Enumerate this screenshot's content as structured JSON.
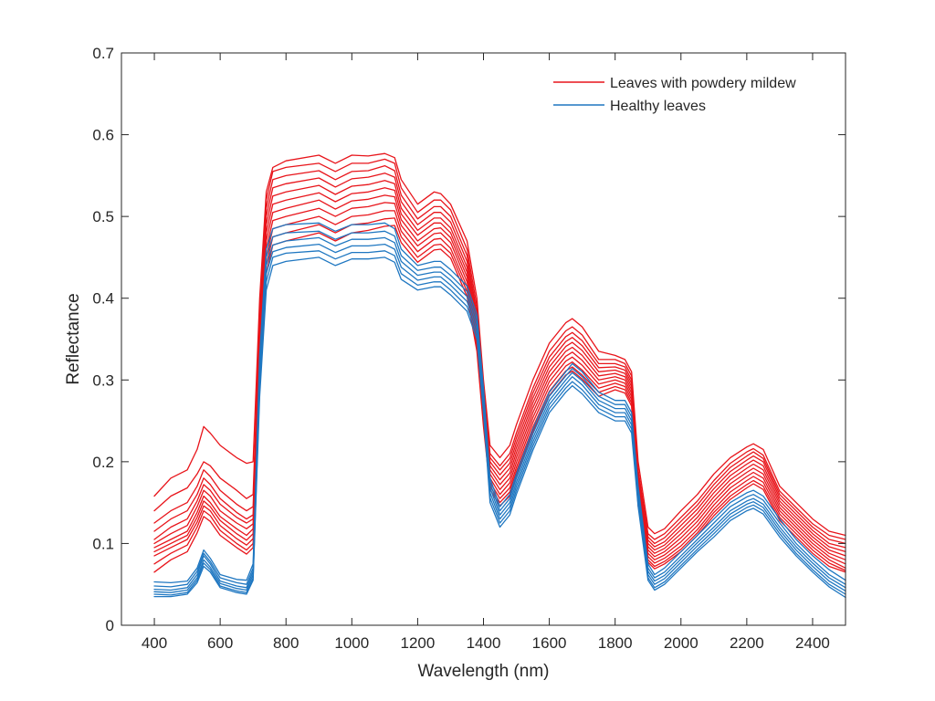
{
  "chart_data": {
    "type": "line",
    "xlabel": "Wavelength (nm)",
    "ylabel": "Reflectance",
    "xlim": [
      300,
      2500
    ],
    "ylim": [
      0,
      0.7
    ],
    "xticks": [
      400,
      600,
      800,
      1000,
      1200,
      1400,
      1600,
      1800,
      2000,
      2200,
      2400
    ],
    "xtick_labels": [
      "400",
      "600",
      "800",
      "1000",
      "1200",
      "1400",
      "1600",
      "1800",
      "2000",
      "2200",
      "2400"
    ],
    "yticks": [
      0,
      0.1,
      0.2,
      0.3,
      0.4,
      0.5,
      0.6,
      0.7
    ],
    "ytick_labels": [
      "0",
      "0.1",
      "0.2",
      "0.3",
      "0.4",
      "0.5",
      "0.6",
      "0.7"
    ],
    "grid": false,
    "box": true,
    "legend_position": "top-right",
    "legend": [
      {
        "label": "Leaves with powdery mildew",
        "color": "#e8141a"
      },
      {
        "label": "Healthy leaves",
        "color": "#1f77c1"
      }
    ],
    "wavelengths": [
      400,
      450,
      500,
      530,
      550,
      570,
      600,
      650,
      680,
      700,
      720,
      740,
      760,
      800,
      900,
      950,
      1000,
      1050,
      1100,
      1130,
      1150,
      1200,
      1250,
      1270,
      1300,
      1350,
      1380,
      1400,
      1420,
      1450,
      1480,
      1500,
      1550,
      1600,
      1650,
      1670,
      1700,
      1750,
      1800,
      1830,
      1850,
      1870,
      1900,
      1920,
      1950,
      2000,
      2050,
      2100,
      2150,
      2200,
      2220,
      2250,
      2300,
      2350,
      2400,
      2450,
      2500
    ],
    "series": [
      {
        "group": "mildew",
        "color": "#e8141a",
        "values": [
          0.158,
          0.18,
          0.19,
          0.215,
          0.243,
          0.235,
          0.22,
          0.205,
          0.198,
          0.2,
          0.4,
          0.53,
          0.56,
          0.568,
          0.575,
          0.565,
          0.575,
          0.574,
          0.577,
          0.572,
          0.545,
          0.515,
          0.53,
          0.528,
          0.515,
          0.47,
          0.4,
          0.3,
          0.22,
          0.205,
          0.22,
          0.245,
          0.3,
          0.345,
          0.37,
          0.375,
          0.365,
          0.335,
          0.33,
          0.325,
          0.31,
          0.2,
          0.12,
          0.112,
          0.118,
          0.14,
          0.16,
          0.185,
          0.205,
          0.218,
          0.222,
          0.215,
          0.17,
          0.15,
          0.13,
          0.115,
          0.11
        ]
      },
      {
        "group": "mildew",
        "color": "#e8141a",
        "values": [
          0.14,
          0.158,
          0.168,
          0.185,
          0.2,
          0.195,
          0.18,
          0.165,
          0.155,
          0.16,
          0.38,
          0.52,
          0.555,
          0.56,
          0.565,
          0.555,
          0.565,
          0.565,
          0.57,
          0.565,
          0.535,
          0.505,
          0.52,
          0.52,
          0.508,
          0.46,
          0.39,
          0.29,
          0.21,
          0.195,
          0.21,
          0.235,
          0.29,
          0.335,
          0.36,
          0.365,
          0.355,
          0.325,
          0.325,
          0.32,
          0.305,
          0.19,
          0.112,
          0.105,
          0.112,
          0.132,
          0.152,
          0.177,
          0.198,
          0.212,
          0.216,
          0.208,
          0.164,
          0.144,
          0.124,
          0.11,
          0.105
        ]
      },
      {
        "group": "mildew",
        "color": "#e8141a",
        "values": [
          0.125,
          0.14,
          0.15,
          0.17,
          0.19,
          0.182,
          0.165,
          0.148,
          0.14,
          0.145,
          0.37,
          0.51,
          0.545,
          0.55,
          0.556,
          0.545,
          0.555,
          0.556,
          0.562,
          0.556,
          0.526,
          0.497,
          0.512,
          0.512,
          0.5,
          0.452,
          0.382,
          0.283,
          0.205,
          0.19,
          0.204,
          0.229,
          0.284,
          0.328,
          0.353,
          0.358,
          0.348,
          0.32,
          0.32,
          0.316,
          0.3,
          0.185,
          0.108,
          0.1,
          0.107,
          0.127,
          0.147,
          0.172,
          0.193,
          0.207,
          0.212,
          0.204,
          0.16,
          0.14,
          0.12,
          0.105,
          0.1
        ]
      },
      {
        "group": "mildew",
        "color": "#e8141a",
        "values": [
          0.115,
          0.13,
          0.14,
          0.16,
          0.18,
          0.172,
          0.155,
          0.138,
          0.13,
          0.135,
          0.36,
          0.5,
          0.535,
          0.54,
          0.547,
          0.536,
          0.546,
          0.548,
          0.553,
          0.548,
          0.518,
          0.49,
          0.505,
          0.505,
          0.493,
          0.445,
          0.376,
          0.277,
          0.2,
          0.184,
          0.198,
          0.223,
          0.278,
          0.322,
          0.347,
          0.352,
          0.342,
          0.315,
          0.316,
          0.312,
          0.296,
          0.18,
          0.104,
          0.096,
          0.102,
          0.122,
          0.142,
          0.167,
          0.188,
          0.202,
          0.207,
          0.2,
          0.156,
          0.136,
          0.116,
          0.1,
          0.095
        ]
      },
      {
        "group": "mildew",
        "color": "#e8141a",
        "values": [
          0.105,
          0.12,
          0.13,
          0.152,
          0.172,
          0.165,
          0.148,
          0.132,
          0.125,
          0.13,
          0.35,
          0.49,
          0.525,
          0.53,
          0.538,
          0.527,
          0.537,
          0.539,
          0.544,
          0.54,
          0.51,
          0.483,
          0.498,
          0.498,
          0.486,
          0.438,
          0.37,
          0.272,
          0.195,
          0.178,
          0.192,
          0.217,
          0.272,
          0.316,
          0.341,
          0.346,
          0.336,
          0.31,
          0.312,
          0.308,
          0.292,
          0.175,
          0.1,
          0.092,
          0.098,
          0.117,
          0.137,
          0.162,
          0.183,
          0.197,
          0.202,
          0.195,
          0.152,
          0.132,
          0.112,
          0.096,
          0.09
        ]
      },
      {
        "group": "mildew",
        "color": "#e8141a",
        "values": [
          0.1,
          0.112,
          0.122,
          0.145,
          0.165,
          0.158,
          0.14,
          0.125,
          0.118,
          0.124,
          0.34,
          0.48,
          0.515,
          0.52,
          0.529,
          0.518,
          0.528,
          0.53,
          0.535,
          0.532,
          0.503,
          0.477,
          0.492,
          0.492,
          0.48,
          0.432,
          0.364,
          0.267,
          0.19,
          0.172,
          0.186,
          0.211,
          0.266,
          0.31,
          0.335,
          0.34,
          0.33,
          0.305,
          0.308,
          0.304,
          0.288,
          0.17,
          0.096,
          0.088,
          0.094,
          0.112,
          0.132,
          0.157,
          0.178,
          0.192,
          0.197,
          0.19,
          0.148,
          0.128,
          0.108,
          0.092,
          0.085
        ]
      },
      {
        "group": "mildew",
        "color": "#e8141a",
        "values": [
          0.095,
          0.105,
          0.115,
          0.138,
          0.158,
          0.15,
          0.133,
          0.118,
          0.11,
          0.118,
          0.33,
          0.47,
          0.505,
          0.51,
          0.52,
          0.509,
          0.519,
          0.521,
          0.526,
          0.524,
          0.496,
          0.47,
          0.485,
          0.486,
          0.474,
          0.426,
          0.358,
          0.262,
          0.185,
          0.166,
          0.18,
          0.205,
          0.26,
          0.304,
          0.329,
          0.334,
          0.324,
          0.3,
          0.304,
          0.3,
          0.284,
          0.165,
          0.092,
          0.084,
          0.09,
          0.107,
          0.127,
          0.152,
          0.173,
          0.187,
          0.192,
          0.185,
          0.144,
          0.124,
          0.104,
          0.088,
          0.08
        ]
      },
      {
        "group": "mildew",
        "color": "#e8141a",
        "values": [
          0.09,
          0.1,
          0.11,
          0.132,
          0.152,
          0.145,
          0.128,
          0.112,
          0.104,
          0.112,
          0.32,
          0.46,
          0.495,
          0.5,
          0.51,
          0.5,
          0.51,
          0.512,
          0.517,
          0.516,
          0.489,
          0.464,
          0.479,
          0.48,
          0.468,
          0.42,
          0.352,
          0.257,
          0.18,
          0.16,
          0.174,
          0.199,
          0.254,
          0.298,
          0.323,
          0.328,
          0.318,
          0.295,
          0.3,
          0.296,
          0.28,
          0.16,
          0.088,
          0.08,
          0.086,
          0.102,
          0.122,
          0.147,
          0.168,
          0.182,
          0.187,
          0.18,
          0.14,
          0.12,
          0.1,
          0.084,
          0.075
        ]
      },
      {
        "group": "mildew",
        "color": "#e8141a",
        "values": [
          0.085,
          0.095,
          0.105,
          0.126,
          0.146,
          0.14,
          0.122,
          0.106,
          0.098,
          0.106,
          0.31,
          0.45,
          0.485,
          0.49,
          0.5,
          0.49,
          0.5,
          0.502,
          0.507,
          0.507,
          0.482,
          0.457,
          0.472,
          0.473,
          0.461,
          0.414,
          0.346,
          0.252,
          0.175,
          0.155,
          0.168,
          0.193,
          0.248,
          0.292,
          0.317,
          0.322,
          0.312,
          0.29,
          0.296,
          0.292,
          0.276,
          0.155,
          0.084,
          0.076,
          0.082,
          0.097,
          0.117,
          0.142,
          0.163,
          0.177,
          0.182,
          0.175,
          0.136,
          0.116,
          0.096,
          0.08,
          0.07
        ]
      },
      {
        "group": "mildew",
        "color": "#e8141a",
        "values": [
          0.075,
          0.088,
          0.098,
          0.12,
          0.14,
          0.134,
          0.116,
          0.1,
          0.092,
          0.1,
          0.3,
          0.44,
          0.475,
          0.48,
          0.49,
          0.48,
          0.49,
          0.492,
          0.497,
          0.498,
          0.475,
          0.45,
          0.465,
          0.466,
          0.455,
          0.408,
          0.34,
          0.247,
          0.17,
          0.15,
          0.163,
          0.188,
          0.242,
          0.286,
          0.311,
          0.316,
          0.306,
          0.285,
          0.292,
          0.288,
          0.272,
          0.15,
          0.08,
          0.072,
          0.078,
          0.093,
          0.113,
          0.138,
          0.158,
          0.172,
          0.177,
          0.17,
          0.132,
          0.112,
          0.092,
          0.076,
          0.067
        ]
      },
      {
        "group": "mildew",
        "color": "#e8141a",
        "values": [
          0.065,
          0.08,
          0.09,
          0.113,
          0.133,
          0.127,
          0.11,
          0.095,
          0.087,
          0.095,
          0.29,
          0.43,
          0.465,
          0.47,
          0.48,
          0.47,
          0.48,
          0.483,
          0.488,
          0.489,
          0.468,
          0.444,
          0.459,
          0.46,
          0.449,
          0.402,
          0.335,
          0.243,
          0.166,
          0.146,
          0.158,
          0.183,
          0.237,
          0.281,
          0.306,
          0.311,
          0.301,
          0.28,
          0.288,
          0.284,
          0.268,
          0.146,
          0.077,
          0.069,
          0.075,
          0.09,
          0.11,
          0.134,
          0.154,
          0.168,
          0.173,
          0.166,
          0.128,
          0.108,
          0.088,
          0.072,
          0.065
        ]
      },
      {
        "group": "healthy",
        "color": "#1f77c1",
        "values": [
          0.053,
          0.052,
          0.054,
          0.07,
          0.092,
          0.082,
          0.062,
          0.056,
          0.055,
          0.075,
          0.33,
          0.46,
          0.485,
          0.49,
          0.492,
          0.482,
          0.49,
          0.49,
          0.492,
          0.485,
          0.46,
          0.44,
          0.445,
          0.445,
          0.435,
          0.415,
          0.38,
          0.29,
          0.18,
          0.145,
          0.16,
          0.185,
          0.24,
          0.285,
          0.31,
          0.32,
          0.31,
          0.285,
          0.275,
          0.275,
          0.26,
          0.17,
          0.075,
          0.062,
          0.07,
          0.09,
          0.11,
          0.13,
          0.15,
          0.162,
          0.165,
          0.158,
          0.13,
          0.105,
          0.085,
          0.068,
          0.055
        ]
      },
      {
        "group": "healthy",
        "color": "#1f77c1",
        "values": [
          0.048,
          0.047,
          0.05,
          0.066,
          0.088,
          0.078,
          0.058,
          0.052,
          0.05,
          0.07,
          0.32,
          0.45,
          0.475,
          0.48,
          0.482,
          0.472,
          0.48,
          0.48,
          0.482,
          0.476,
          0.452,
          0.434,
          0.438,
          0.438,
          0.428,
          0.408,
          0.374,
          0.284,
          0.174,
          0.14,
          0.155,
          0.18,
          0.234,
          0.28,
          0.305,
          0.314,
          0.304,
          0.28,
          0.27,
          0.27,
          0.255,
          0.165,
          0.07,
          0.058,
          0.065,
          0.085,
          0.105,
          0.125,
          0.145,
          0.157,
          0.16,
          0.153,
          0.125,
          0.1,
          0.08,
          0.062,
          0.05
        ]
      },
      {
        "group": "healthy",
        "color": "#1f77c1",
        "values": [
          0.044,
          0.043,
          0.046,
          0.062,
          0.085,
          0.075,
          0.054,
          0.048,
          0.046,
          0.066,
          0.31,
          0.44,
          0.465,
          0.47,
          0.474,
          0.464,
          0.472,
          0.472,
          0.474,
          0.468,
          0.445,
          0.428,
          0.432,
          0.432,
          0.422,
          0.402,
          0.368,
          0.278,
          0.168,
          0.135,
          0.15,
          0.175,
          0.229,
          0.275,
          0.3,
          0.309,
          0.299,
          0.275,
          0.265,
          0.265,
          0.25,
          0.16,
          0.066,
          0.054,
          0.061,
          0.081,
          0.101,
          0.12,
          0.14,
          0.152,
          0.155,
          0.148,
          0.12,
          0.096,
          0.076,
          0.058,
          0.046
        ]
      },
      {
        "group": "healthy",
        "color": "#1f77c1",
        "values": [
          0.041,
          0.04,
          0.043,
          0.058,
          0.08,
          0.071,
          0.051,
          0.045,
          0.043,
          0.062,
          0.3,
          0.43,
          0.457,
          0.462,
          0.466,
          0.456,
          0.464,
          0.464,
          0.466,
          0.46,
          0.438,
          0.422,
          0.426,
          0.426,
          0.416,
          0.396,
          0.362,
          0.272,
          0.162,
          0.13,
          0.145,
          0.17,
          0.224,
          0.27,
          0.295,
          0.304,
          0.294,
          0.27,
          0.26,
          0.26,
          0.245,
          0.155,
          0.062,
          0.05,
          0.057,
          0.077,
          0.097,
          0.116,
          0.136,
          0.148,
          0.151,
          0.144,
          0.116,
          0.092,
          0.072,
          0.054,
          0.042
        ]
      },
      {
        "group": "healthy",
        "color": "#1f77c1",
        "values": [
          0.038,
          0.037,
          0.04,
          0.055,
          0.076,
          0.068,
          0.048,
          0.042,
          0.04,
          0.058,
          0.29,
          0.42,
          0.45,
          0.455,
          0.458,
          0.448,
          0.456,
          0.456,
          0.458,
          0.452,
          0.43,
          0.416,
          0.42,
          0.42,
          0.41,
          0.39,
          0.356,
          0.266,
          0.156,
          0.125,
          0.14,
          0.165,
          0.219,
          0.265,
          0.29,
          0.298,
          0.288,
          0.265,
          0.255,
          0.255,
          0.24,
          0.15,
          0.058,
          0.046,
          0.053,
          0.073,
          0.093,
          0.112,
          0.132,
          0.144,
          0.147,
          0.14,
          0.112,
          0.088,
          0.068,
          0.05,
          0.038
        ]
      },
      {
        "group": "healthy",
        "color": "#1f77c1",
        "values": [
          0.035,
          0.035,
          0.038,
          0.052,
          0.072,
          0.065,
          0.046,
          0.04,
          0.038,
          0.055,
          0.28,
          0.41,
          0.44,
          0.445,
          0.45,
          0.44,
          0.448,
          0.448,
          0.45,
          0.444,
          0.423,
          0.41,
          0.414,
          0.414,
          0.404,
          0.384,
          0.35,
          0.26,
          0.15,
          0.12,
          0.135,
          0.16,
          0.214,
          0.26,
          0.285,
          0.293,
          0.283,
          0.26,
          0.25,
          0.25,
          0.235,
          0.145,
          0.055,
          0.043,
          0.05,
          0.07,
          0.09,
          0.108,
          0.128,
          0.14,
          0.143,
          0.136,
          0.108,
          0.085,
          0.065,
          0.047,
          0.034
        ]
      }
    ]
  }
}
